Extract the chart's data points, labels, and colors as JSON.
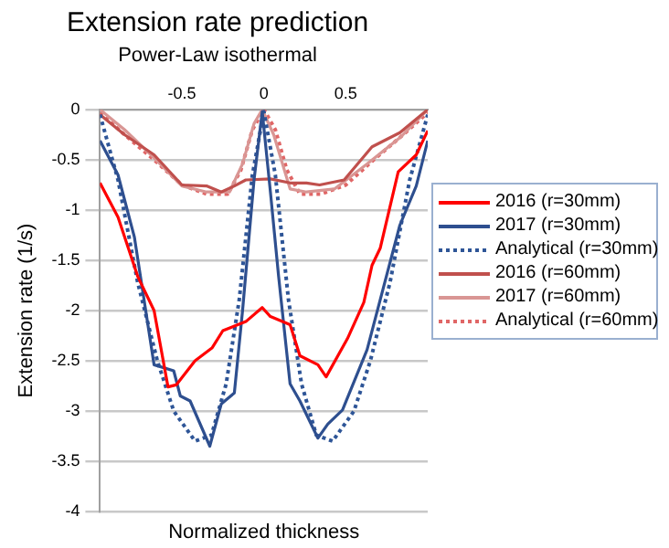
{
  "chart_data": {
    "type": "line",
    "title": "Extension rate prediction",
    "subtitle": "Power-Law isothermal",
    "xlabel": "Normalized thickness",
    "ylabel": "Extension rate (1/s)",
    "xlim": [
      -1,
      1
    ],
    "xticks": [
      -0.5,
      0,
      0.5
    ],
    "ylim": [
      -4,
      0
    ],
    "yticks": [
      -4,
      -3.5,
      -3,
      -2.5,
      -2,
      -1.5,
      -1,
      -0.5,
      0
    ],
    "grid": "y",
    "legend": "right",
    "marker": "none",
    "series": [
      {
        "name": "2016 (r=30mm)",
        "color": "#ff0000",
        "line_style": "solid",
        "x": [
          -1,
          -0.89,
          -0.77,
          -0.67,
          -0.585,
          -0.535,
          -0.42,
          -0.315,
          -0.25,
          -0.11,
          -0.01,
          0.04,
          0.16,
          0.22,
          0.33,
          0.38,
          0.51,
          0.61,
          0.66,
          0.71,
          0.82,
          0.93,
          1
        ],
        "values": [
          -0.73,
          -1.07,
          -1.66,
          -2.0,
          -2.76,
          -2.74,
          -2.5,
          -2.37,
          -2.2,
          -2.11,
          -1.97,
          -2.06,
          -2.14,
          -2.45,
          -2.54,
          -2.66,
          -2.28,
          -1.92,
          -1.55,
          -1.38,
          -0.62,
          -0.45,
          -0.21
        ]
      },
      {
        "name": "2017 (r=30mm)",
        "color": "#2e4f8f",
        "line_style": "solid",
        "x": [
          -1,
          -0.89,
          -0.79,
          -0.67,
          -0.55,
          -0.51,
          -0.45,
          -0.33,
          -0.26,
          -0.18,
          -0.13,
          -0.06,
          -0.01,
          0.04,
          0.09,
          0.16,
          0.22,
          0.33,
          0.39,
          0.48,
          0.63,
          0.73,
          0.83,
          0.93,
          1
        ],
        "values": [
          -0.31,
          -0.65,
          -1.27,
          -2.54,
          -2.6,
          -2.85,
          -2.9,
          -3.35,
          -2.93,
          -2.82,
          -2.0,
          -0.7,
          -0.02,
          -0.82,
          -1.66,
          -2.73,
          -2.9,
          -3.27,
          -3.13,
          -2.99,
          -2.39,
          -1.77,
          -1.15,
          -0.76,
          -0.31
        ]
      },
      {
        "name": "Analytical (r=30mm)",
        "color": "#2e5597",
        "line_style": "dotted",
        "x": [
          -1,
          -0.89,
          -0.77,
          -0.65,
          -0.55,
          -0.42,
          -0.32,
          -0.23,
          -0.15,
          -0.07,
          0,
          0.07,
          0.15,
          0.23,
          0.32,
          0.42,
          0.55,
          0.65,
          0.77,
          0.89,
          1
        ],
        "values": [
          -0.05,
          -0.7,
          -1.72,
          -2.5,
          -3.0,
          -3.3,
          -3.24,
          -2.73,
          -1.89,
          -0.65,
          -0.02,
          -0.65,
          -1.89,
          -2.73,
          -3.24,
          -3.3,
          -3.0,
          -2.5,
          -1.72,
          -0.7,
          -0.05
        ]
      },
      {
        "name": "2016 (r=60mm)",
        "color": "#c0504d",
        "line_style": "solid",
        "x": [
          -1,
          -0.85,
          -0.67,
          -0.5,
          -0.35,
          -0.26,
          -0.18,
          -0.11,
          0.04,
          0.16,
          0.26,
          0.34,
          0.49,
          0.66,
          0.83,
          1
        ],
        "values": [
          -0.05,
          -0.25,
          -0.45,
          -0.75,
          -0.76,
          -0.82,
          -0.76,
          -0.7,
          -0.69,
          -0.73,
          -0.73,
          -0.75,
          -0.7,
          -0.37,
          -0.23,
          0
        ]
      },
      {
        "name": "2017 (r=60mm)",
        "color": "#d99694",
        "line_style": "solid",
        "x": [
          -1,
          -0.85,
          -0.67,
          -0.5,
          -0.35,
          -0.21,
          -0.13,
          -0.06,
          -0.01,
          0.06,
          0.16,
          0.26,
          0.43,
          0.63,
          0.83,
          1
        ],
        "values": [
          0,
          -0.2,
          -0.48,
          -0.76,
          -0.82,
          -0.82,
          -0.54,
          -0.14,
          0,
          -0.25,
          -0.79,
          -0.82,
          -0.79,
          -0.54,
          -0.28,
          0
        ]
      },
      {
        "name": "Analytical (r=60mm)",
        "color": "#e06666",
        "line_style": "dotted",
        "x": [
          -1,
          -0.85,
          -0.67,
          -0.5,
          -0.35,
          -0.22,
          -0.14,
          -0.07,
          0,
          0.07,
          0.14,
          0.22,
          0.35,
          0.5,
          0.67,
          0.85,
          1
        ],
        "values": [
          -0.03,
          -0.25,
          -0.5,
          -0.75,
          -0.84,
          -0.84,
          -0.6,
          -0.2,
          0,
          -0.2,
          -0.6,
          -0.84,
          -0.84,
          -0.75,
          -0.5,
          -0.25,
          -0.03
        ]
      }
    ]
  }
}
